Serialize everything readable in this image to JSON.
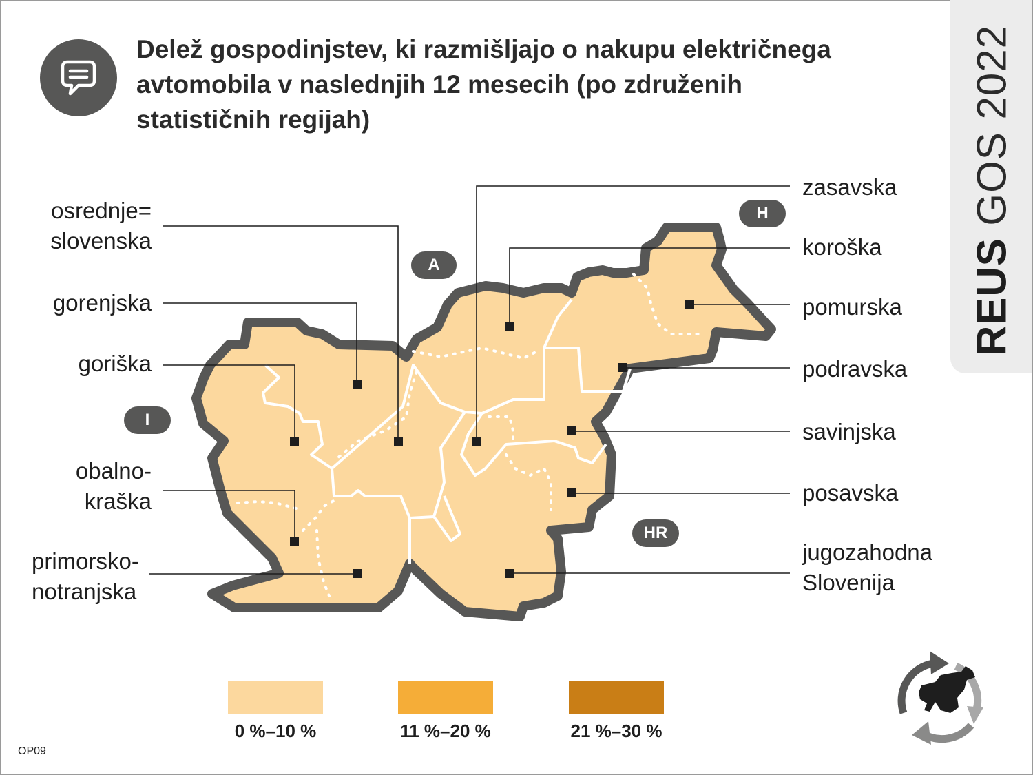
{
  "title": {
    "line1": "Delež gospodinjstev, ki razmišljajo o nakupu električnega",
    "line2": "avtomobila  v naslednjih 12 mesecih (po združenih",
    "line3": "statističnih regijah)"
  },
  "side_tab": {
    "bold": "REUS",
    "light": "GOS 2022"
  },
  "icons": {
    "header": "chat-bubble-icon",
    "logo": "recycle-slovenia-logo"
  },
  "colors": {
    "low": "#fcd89e",
    "mid": "#f5ad38",
    "high": "#c97e16",
    "border": "#575756",
    "badge": "#575756"
  },
  "map": {
    "regions": [
      {
        "name": "osrednje=\nslovenska",
        "line1": "osrednje=",
        "line2": "slovenska",
        "class": "0 %–10 %"
      },
      {
        "name": "gorenjska",
        "class": "0 %–10 %"
      },
      {
        "name": "goriška",
        "class": "0 %–10 %"
      },
      {
        "name": "obalno-kraška",
        "line1": "obalno-",
        "line2": "kraška",
        "class": "0 %–10 %"
      },
      {
        "name": "primorsko-notranjska",
        "line1": "primorsko-",
        "line2": "notranjska",
        "class": "0 %–10 %"
      },
      {
        "name": "zasavska",
        "class": "0 %–10 %"
      },
      {
        "name": "koroška",
        "class": "0 %–10 %"
      },
      {
        "name": "pomurska",
        "class": "0 %–10 %"
      },
      {
        "name": "podravska",
        "class": "0 %–10 %"
      },
      {
        "name": "savinjska",
        "class": "0 %–10 %"
      },
      {
        "name": "posavska",
        "class": "0 %–10 %"
      },
      {
        "name": "jugozahodna Slovenija",
        "line1": "jugozahodna",
        "line2": "Slovenija",
        "class": "0 %–10 %"
      }
    ],
    "neighbors": {
      "austria": "A",
      "hungary": "H",
      "italy": "I",
      "croatia": "HR"
    }
  },
  "legend": [
    {
      "label": "0 %–10 %",
      "color": "#fcd89e"
    },
    {
      "label": "11 %–20 %",
      "color": "#f5ad38"
    },
    {
      "label": "21 %–30 %",
      "color": "#c97e16"
    }
  ],
  "code": "OP09"
}
